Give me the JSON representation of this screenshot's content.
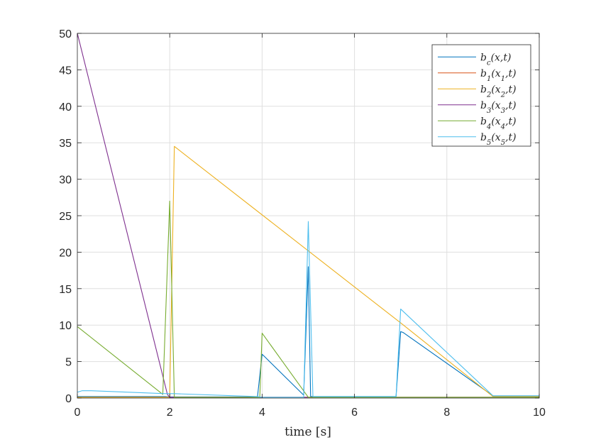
{
  "chart_data": {
    "type": "line",
    "xlabel": "time [s]",
    "ylabel": "",
    "xlim": [
      0,
      10
    ],
    "ylim": [
      0,
      50
    ],
    "xticks": [
      0,
      2,
      4,
      6,
      8,
      10
    ],
    "yticks": [
      0,
      5,
      10,
      15,
      20,
      25,
      30,
      35,
      40,
      45,
      50
    ],
    "grid": true,
    "legend_position": "top-right",
    "series": [
      {
        "name": "b_c(x,t)",
        "color": "#0072BD",
        "x": [
          0,
          1.9,
          2.0,
          2.05,
          3.9,
          4.0,
          4.05,
          4.9,
          5.0,
          5.05,
          5.1,
          6.9,
          7.0,
          7.05,
          9.0,
          10.0
        ],
        "y": [
          0.2,
          0.2,
          0.15,
          0.15,
          0.15,
          6.0,
          5.7,
          0.4,
          18.0,
          0.2,
          0.2,
          0.2,
          9.1,
          9.0,
          0.3,
          0.3
        ]
      },
      {
        "name": "b_1(x_1,t)",
        "color": "#D95319",
        "x": [
          0,
          10
        ],
        "y": [
          0.1,
          0.1
        ]
      },
      {
        "name": "b_2(x_2,t)",
        "color": "#EDB120",
        "x": [
          0,
          2.0,
          2.1,
          7.0,
          9.0,
          10.0
        ],
        "y": [
          0.1,
          0.1,
          34.5,
          10.3,
          0.2,
          0.2
        ]
      },
      {
        "name": "b_3(x_3,t)",
        "color": "#7E2F8E",
        "x": [
          0,
          1.95,
          2.0,
          10.0
        ],
        "y": [
          50.0,
          0.5,
          0.1,
          0.1
        ]
      },
      {
        "name": "b_4(x_4,t)",
        "color": "#77AC30",
        "x": [
          0,
          1.85,
          2.0,
          2.1,
          3.95,
          4.0,
          5.0,
          5.05,
          10.0
        ],
        "y": [
          9.8,
          0.5,
          27.0,
          0.1,
          0.1,
          8.9,
          0.1,
          0.1,
          0.1
        ]
      },
      {
        "name": "b_5(x_5,t)",
        "color": "#4DBEEE",
        "x": [
          0,
          0.1,
          0.3,
          1.9,
          2.0,
          2.1,
          3.9,
          4.0,
          4.9,
          5.0,
          5.1,
          6.9,
          7.0,
          9.0,
          10.0
        ],
        "y": [
          0.8,
          1.0,
          1.0,
          0.6,
          0.6,
          0.6,
          0.2,
          0.1,
          0.1,
          24.2,
          0.2,
          0.2,
          12.2,
          0.3,
          0.3
        ]
      }
    ]
  }
}
